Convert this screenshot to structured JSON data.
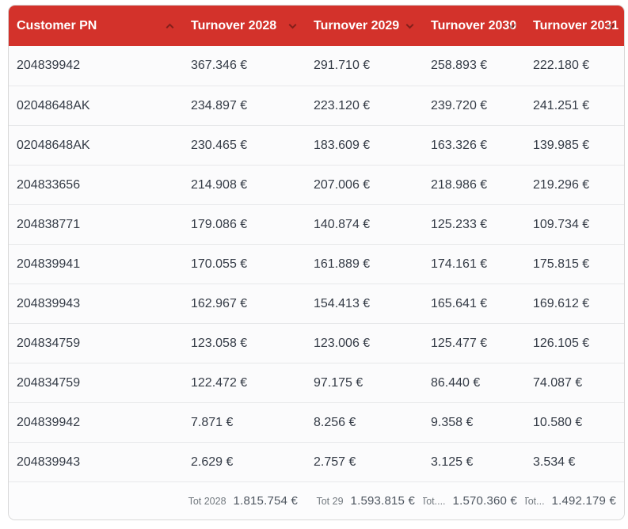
{
  "colors": {
    "header_bg": "#d3322b",
    "header_text": "#ffffff",
    "row_bg": "#fbfbfc",
    "row_text": "#343b46",
    "border": "#e7e8ea",
    "footer_label": "#72797f",
    "footer_value": "#4e5660"
  },
  "table": {
    "columns": [
      {
        "label": "Customer PN",
        "sort": "up"
      },
      {
        "label": "Turnover 2028",
        "sort": "down"
      },
      {
        "label": "Turnover 2029",
        "sort": "down"
      },
      {
        "label": "Turnover 2030",
        "sort": "down"
      },
      {
        "label": "Turnover 2031",
        "sort": "down"
      }
    ],
    "rows": [
      {
        "pn": "204839942",
        "values": [
          "367.346 €",
          "291.710 €",
          "258.893 €",
          "222.180 €"
        ]
      },
      {
        "pn": "02048648AK",
        "values": [
          "234.897 €",
          "223.120 €",
          "239.720 €",
          "241.251 €"
        ]
      },
      {
        "pn": "02048648AK",
        "values": [
          "230.465 €",
          "183.609 €",
          "163.326 €",
          "139.985 €"
        ]
      },
      {
        "pn": "204833656",
        "values": [
          "214.908 €",
          "207.006 €",
          "218.986 €",
          "219.296 €"
        ]
      },
      {
        "pn": "204838771",
        "values": [
          "179.086 €",
          "140.874 €",
          "125.233 €",
          "109.734 €"
        ]
      },
      {
        "pn": "204839941",
        "values": [
          "170.055 €",
          "161.889 €",
          "174.161 €",
          "175.815 €"
        ]
      },
      {
        "pn": "204839943",
        "values": [
          "162.967 €",
          "154.413 €",
          "165.641 €",
          "169.612 €"
        ]
      },
      {
        "pn": "204834759",
        "values": [
          "123.058 €",
          "123.006 €",
          "125.477 €",
          "126.105 €"
        ]
      },
      {
        "pn": "204834759",
        "values": [
          "122.472 €",
          "97.175 €",
          "86.440 €",
          "74.087 €"
        ]
      },
      {
        "pn": "204839942",
        "values": [
          "7.871 €",
          "8.256 €",
          "9.358 €",
          "10.580 €"
        ]
      },
      {
        "pn": "204839943",
        "values": [
          "2.629 €",
          "2.757 €",
          "3.125 €",
          "3.534 €"
        ]
      }
    ],
    "footer": [
      {
        "label": "Tot 2028",
        "value": "1.815.754 €"
      },
      {
        "label": "Tot 29",
        "value": "1.593.815 €"
      },
      {
        "label": "Tot....",
        "value": "1.570.360 €"
      },
      {
        "label": "Tot...",
        "value": "1.492.179 €"
      }
    ]
  }
}
